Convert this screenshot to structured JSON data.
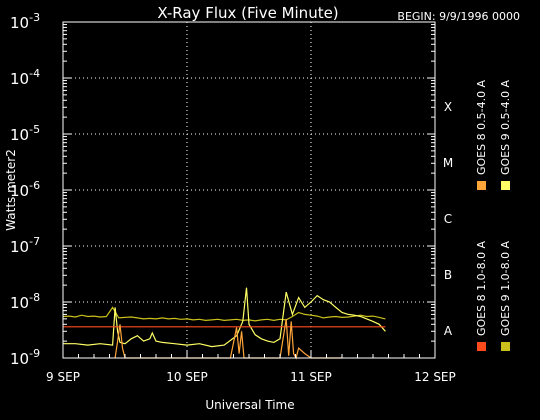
{
  "header": {
    "title": "X-Ray Flux (Five Minute)",
    "begin": "BEGIN: 9/9/1996 0000"
  },
  "chart_data": {
    "type": "line",
    "title": "X-Ray Flux (Five Minute)",
    "xlabel": "Universal Time",
    "ylabel": "Watts meter2",
    "y_scale": "log",
    "ylim": [
      1e-09,
      0.001
    ],
    "xlim_days": [
      0,
      3
    ],
    "x_ticks": [
      {
        "value": 0,
        "label": "9 SEP"
      },
      {
        "value": 1,
        "label": "10 SEP"
      },
      {
        "value": 2,
        "label": "11 SEP"
      },
      {
        "value": 3,
        "label": "12 SEP"
      }
    ],
    "y_ticks": [
      {
        "exp": -9,
        "base": "10",
        "sup": "-9"
      },
      {
        "exp": -8,
        "base": "10",
        "sup": "-8"
      },
      {
        "exp": -7,
        "base": "10",
        "sup": "-7"
      },
      {
        "exp": -6,
        "base": "10",
        "sup": "-6"
      },
      {
        "exp": -5,
        "base": "10",
        "sup": "-5"
      },
      {
        "exp": -4,
        "base": "10",
        "sup": "-4"
      },
      {
        "exp": -3,
        "base": "10",
        "sup": "-3"
      }
    ],
    "flare_classes": [
      {
        "label": "A",
        "exp": -8
      },
      {
        "label": "B",
        "exp": -7
      },
      {
        "label": "C",
        "exp": -6
      },
      {
        "label": "M",
        "exp": -5
      },
      {
        "label": "X",
        "exp": -4
      }
    ],
    "grid": true,
    "legend": [
      {
        "name": "GOES 8 1.0-8.0 A",
        "color": "#ff4a1c"
      },
      {
        "name": "GOES 8 0.5-4.0 A",
        "color": "#ffa53a"
      },
      {
        "name": "GOES 9 1.0-8.0 A",
        "color": "#c9c01b"
      },
      {
        "name": "GOES 9 0.5-4.0 A",
        "color": "#ffff66"
      }
    ],
    "series": [
      {
        "name": "GOES 9 1.0-8.0 A",
        "color": "#c9c01b",
        "x": [
          0,
          0.05,
          0.1,
          0.15,
          0.2,
          0.25,
          0.3,
          0.35,
          0.4,
          0.45,
          0.5,
          0.55,
          0.6,
          0.65,
          0.7,
          0.75,
          0.8,
          0.85,
          0.9,
          0.95,
          1.0,
          1.05,
          1.1,
          1.15,
          1.2,
          1.25,
          1.3,
          1.35,
          1.4,
          1.45,
          1.5,
          1.55,
          1.6,
          1.65,
          1.7,
          1.75,
          1.8,
          1.85,
          1.9,
          1.95,
          2.0,
          2.05,
          2.1,
          2.15,
          2.2,
          2.25,
          2.3,
          2.35,
          2.4,
          2.45,
          2.5,
          2.55,
          2.6
        ],
        "y": [
          5.5e-09,
          5.6e-09,
          5.4e-09,
          5.8e-09,
          5.5e-09,
          5.6e-09,
          5.4e-09,
          5.5e-09,
          8e-09,
          5.2e-09,
          5.3e-09,
          5.4e-09,
          5.2e-09,
          5e-09,
          5.1e-09,
          5e-09,
          5.2e-09,
          5e-09,
          5.1e-09,
          4.9e-09,
          5e-09,
          4.8e-09,
          4.9e-09,
          4.7e-09,
          4.8e-09,
          4.9e-09,
          4.7e-09,
          4.8e-09,
          4.9e-09,
          4.7e-09,
          4.8e-09,
          4.6e-09,
          4.8e-09,
          4.9e-09,
          4.7e-09,
          4.9e-09,
          4.8e-09,
          5.5e-09,
          6.5e-09,
          6e-09,
          5.8e-09,
          5.6e-09,
          5.2e-09,
          5.4e-09,
          5.5e-09,
          5.3e-09,
          5.4e-09,
          5.6e-09,
          5.8e-09,
          5.5e-09,
          5.6e-09,
          5.3e-09,
          5e-09
        ]
      },
      {
        "name": "GOES 9 0.5-4.0 A",
        "color": "#ffff66",
        "x": [
          0,
          0.1,
          0.2,
          0.3,
          0.4,
          0.42,
          0.44,
          0.46,
          0.5,
          0.55,
          0.6,
          0.65,
          0.7,
          0.72,
          0.75,
          0.8,
          0.9,
          1.0,
          1.1,
          1.2,
          1.3,
          1.4,
          1.45,
          1.48,
          1.5,
          1.55,
          1.6,
          1.65,
          1.7,
          1.75,
          1.8,
          1.85,
          1.9,
          1.95,
          2.0,
          2.05,
          2.1,
          2.15,
          2.2,
          2.25,
          2.3,
          2.35,
          2.4,
          2.45,
          2.5,
          2.55,
          2.6
        ],
        "y": [
          1.8e-09,
          1.8e-09,
          1.7e-09,
          1.8e-09,
          1.7e-09,
          8e-09,
          3e-09,
          1.9e-09,
          1.8e-09,
          2.2e-09,
          2.5e-09,
          2e-09,
          2.2e-09,
          2.8e-09,
          2e-09,
          1.9e-09,
          1.8e-09,
          1.7e-09,
          1.8e-09,
          1.6e-09,
          1.7e-09,
          2.5e-09,
          4.5e-09,
          1.8e-08,
          4e-09,
          2.6e-09,
          2.2e-09,
          2e-09,
          1.9e-09,
          2.2e-09,
          1.5e-08,
          6e-09,
          1.2e-08,
          8e-09,
          1e-08,
          1.3e-08,
          1.1e-08,
          1e-08,
          8e-09,
          6.5e-09,
          6e-09,
          5.8e-09,
          5.5e-09,
          5e-09,
          4.5e-09,
          4e-09,
          3e-09
        ]
      },
      {
        "name": "GOES 8 1.0-8.0 A",
        "color": "#ff4a1c",
        "x": [
          0,
          0.2,
          0.4,
          0.6,
          0.8,
          1.0,
          1.2,
          1.4,
          1.6,
          1.8,
          2.0,
          2.2,
          2.4,
          2.6
        ],
        "y": [
          3.6e-09,
          3.6e-09,
          3.6e-09,
          3.6e-09,
          3.6e-09,
          3.6e-09,
          3.6e-09,
          3.6e-09,
          3.6e-09,
          3.6e-09,
          3.6e-09,
          3.6e-09,
          3.6e-09,
          3.6e-09
        ]
      },
      {
        "name": "GOES 8 0.5-4.0 A",
        "color": "#ffa53a",
        "x": [
          0.42,
          0.44,
          0.46,
          0.48,
          0.5,
          0.9,
          1.35,
          1.4,
          1.42,
          1.44,
          1.46,
          1.5,
          1.55,
          1.6,
          1.65,
          1.7,
          1.75,
          1.8,
          1.82,
          1.84,
          1.86,
          1.88,
          1.9,
          1.95,
          2.0,
          2.05,
          2.1,
          2.15,
          2.2,
          2.25
        ],
        "y": [
          1e-09,
          2e-09,
          4e-09,
          1.5e-09,
          1e-09,
          1e-09,
          1e-09,
          3.5e-09,
          1.2e-09,
          3e-09,
          1e-09,
          1e-09,
          1e-09,
          1e-09,
          1e-09,
          1e-09,
          1e-09,
          5e-09,
          1.1e-09,
          4.5e-09,
          1.2e-09,
          1e-09,
          1.5e-09,
          1.2e-09,
          1e-09,
          1e-09,
          1e-09,
          1e-09,
          1e-09,
          1e-09
        ]
      }
    ]
  }
}
